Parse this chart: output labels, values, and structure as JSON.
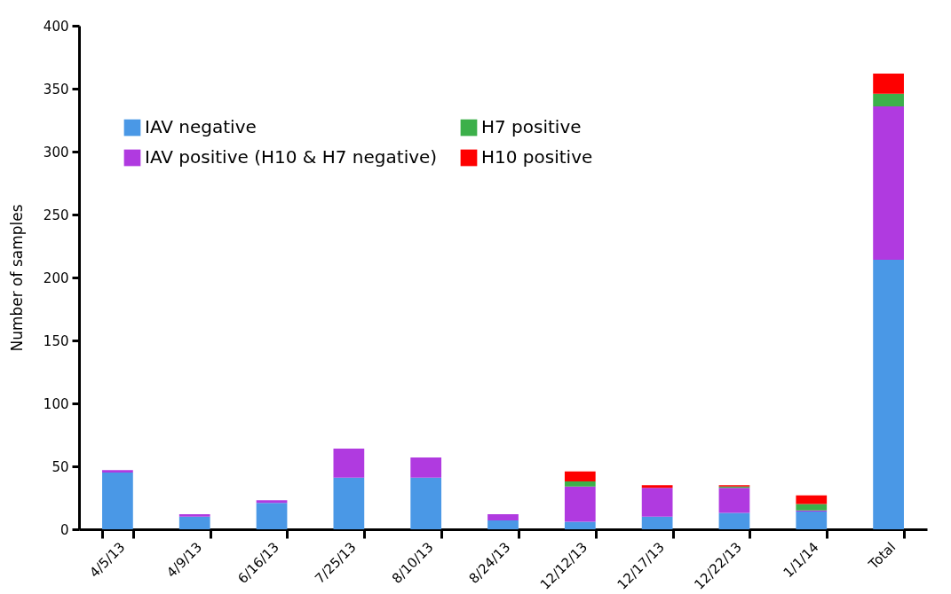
{
  "chart_data": {
    "type": "bar",
    "stacked": true,
    "ylabel": "Number of samples",
    "categories": [
      "4/5/13",
      "4/9/13",
      "6/16/13",
      "7/25/13",
      "8/10/13",
      "8/24/13",
      "12/12/13",
      "12/17/13",
      "12/22/13",
      "1/1/14",
      "Total"
    ],
    "series": [
      {
        "name": "IAV negative",
        "color": "#4a98e6",
        "values": [
          45,
          10,
          21,
          41,
          41,
          7,
          6,
          10,
          13,
          14,
          214
        ]
      },
      {
        "name": "IAV positive (H10 & H7 negative)",
        "color": "#b03ae0",
        "values": [
          2,
          2,
          2,
          23,
          16,
          5,
          28,
          23,
          20,
          1,
          122
        ]
      },
      {
        "name": "H7 positive",
        "color": "#3cb04a",
        "values": [
          0,
          0,
          0,
          0,
          0,
          0,
          4,
          0,
          1,
          5,
          10
        ]
      },
      {
        "name": "H10 positive",
        "color": "#fe0000",
        "values": [
          0,
          0,
          0,
          0,
          0,
          0,
          8,
          2,
          1,
          7,
          16
        ]
      }
    ],
    "ylim": [
      0,
      400
    ],
    "yticks": [
      0,
      50,
      100,
      150,
      200,
      250,
      300,
      350,
      400
    ],
    "grid": false,
    "legend": "top left"
  }
}
